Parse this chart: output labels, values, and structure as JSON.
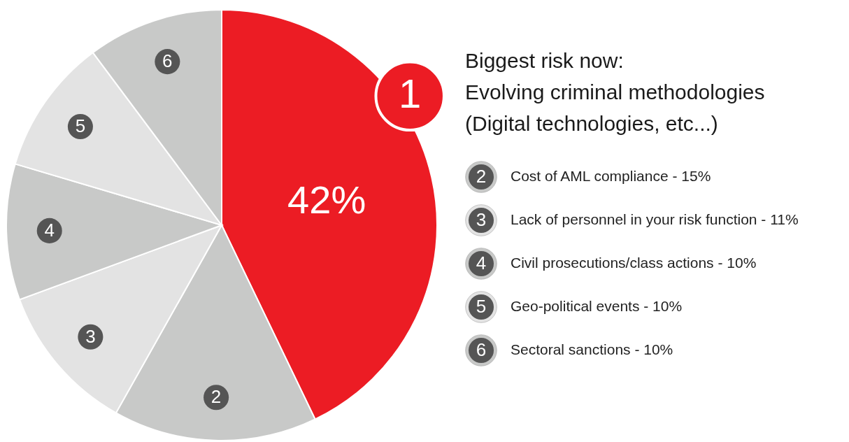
{
  "chart_data": {
    "type": "pie",
    "title": "Biggest risk now:",
    "categories": [
      "Evolving criminal methodologies (Digital technologies, etc...)",
      "Cost of AML compliance",
      "Lack of personnel in your risk function",
      "Civil prosecutions/class actions",
      "Geo-political events",
      "Sectoral sanctions"
    ],
    "values": [
      42,
      15,
      11,
      10,
      10,
      10
    ],
    "colors": [
      "#ec1c24",
      "#c8c9c8",
      "#e3e3e3",
      "#c8c9c8",
      "#e3e3e3",
      "#c8c9c8"
    ],
    "value_labels": [
      "42%",
      "15%",
      "11%",
      "10%",
      "10%",
      "10%"
    ],
    "annotations": [
      "1",
      "2",
      "3",
      "4",
      "5",
      "6"
    ],
    "legend": "right"
  }
}
